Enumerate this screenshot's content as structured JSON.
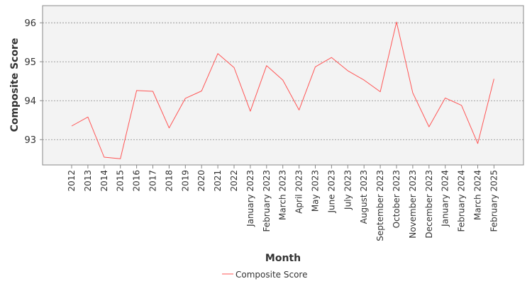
{
  "chart_data": {
    "type": "line",
    "title": "",
    "xlabel": "Month",
    "ylabel": "Composite Score",
    "categories": [
      "2012",
      "2013",
      "2014",
      "2015",
      "2016",
      "2017",
      "2018",
      "2019",
      "2020",
      "2021",
      "2022",
      "January 2023",
      "February 2023",
      "March 2023",
      "April 2023",
      "May 2023",
      "June 2023",
      "July 2023",
      "August 2023",
      "September 2023",
      "October 2023",
      "November 2023",
      "December 2023",
      "January 2024",
      "February 2024",
      "March 2024",
      "February 2025"
    ],
    "series": [
      {
        "name": "Composite Score",
        "color": "#ff5555",
        "values": [
          93.35,
          93.58,
          92.55,
          92.51,
          94.26,
          94.24,
          93.3,
          94.06,
          94.25,
          95.21,
          94.85,
          93.73,
          94.9,
          94.53,
          93.76,
          94.87,
          95.11,
          94.77,
          94.53,
          94.23,
          96.02,
          94.2,
          93.33,
          94.07,
          93.88,
          92.9,
          94.56
        ]
      }
    ],
    "ylim": [
      92.35,
      96.44
    ],
    "yticks": [
      93,
      94,
      95,
      96
    ],
    "grid": true,
    "legend_position": "bottom-center",
    "plot_background": "#f3f3f3",
    "grid_color": "#888888"
  }
}
